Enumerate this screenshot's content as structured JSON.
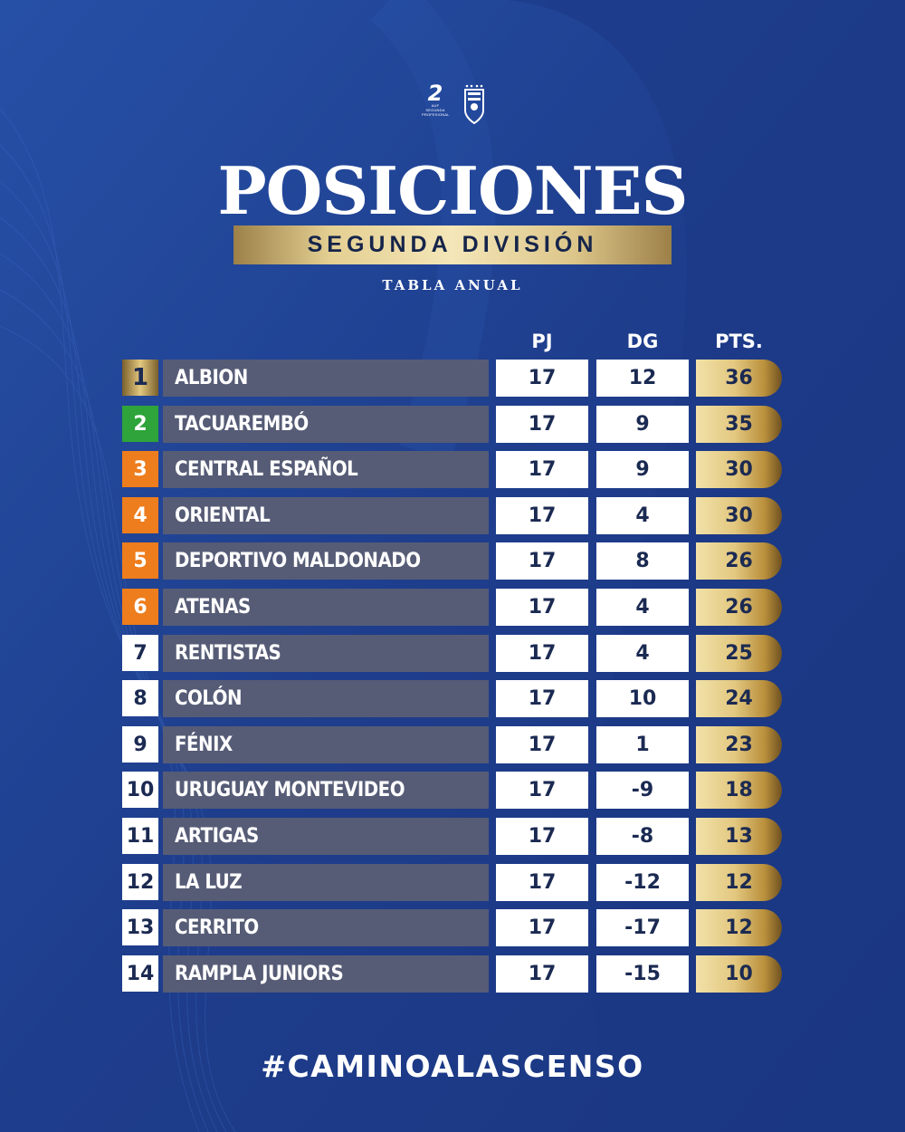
{
  "header": {
    "title": "POSICIONES",
    "subtitle": "SEGUNDA DIVISIÓN",
    "tag": "TABLA ANUAL",
    "logo_number": "2",
    "logo_text": "AUF SEGUNDA PROFESIONAL"
  },
  "columns": {
    "pj": "PJ",
    "dg": "DG",
    "pts": "PTS."
  },
  "colors": {
    "background": "#1f3f8e",
    "team_band": "#565c76",
    "leader": "#b08f4a",
    "promotion": "#2ea43a",
    "playoff": "#ee7d1d",
    "normal": "#ffffff",
    "gold": "#e3c880"
  },
  "standings": [
    {
      "pos": "1",
      "team": "ALBION",
      "pj": "17",
      "dg": "12",
      "pts": "36",
      "status": "leader"
    },
    {
      "pos": "2",
      "team": "TACUAREMBÓ",
      "pj": "17",
      "dg": "9",
      "pts": "35",
      "status": "promotion"
    },
    {
      "pos": "3",
      "team": "CENTRAL ESPAÑOL",
      "pj": "17",
      "dg": "9",
      "pts": "30",
      "status": "playoff"
    },
    {
      "pos": "4",
      "team": "ORIENTAL",
      "pj": "17",
      "dg": "4",
      "pts": "30",
      "status": "playoff"
    },
    {
      "pos": "5",
      "team": "DEPORTIVO MALDONADO",
      "pj": "17",
      "dg": "8",
      "pts": "26",
      "status": "playoff"
    },
    {
      "pos": "6",
      "team": "ATENAS",
      "pj": "17",
      "dg": "4",
      "pts": "26",
      "status": "playoff"
    },
    {
      "pos": "7",
      "team": "RENTISTAS",
      "pj": "17",
      "dg": "4",
      "pts": "25",
      "status": "normal"
    },
    {
      "pos": "8",
      "team": "COLÓN",
      "pj": "17",
      "dg": "10",
      "pts": "24",
      "status": "normal"
    },
    {
      "pos": "9",
      "team": "FÉNIX",
      "pj": "17",
      "dg": "1",
      "pts": "23",
      "status": "normal"
    },
    {
      "pos": "10",
      "team": "URUGUAY MONTEVIDEO",
      "pj": "17",
      "dg": "-9",
      "pts": "18",
      "status": "normal"
    },
    {
      "pos": "11",
      "team": "ARTIGAS",
      "pj": "17",
      "dg": "-8",
      "pts": "13",
      "status": "normal"
    },
    {
      "pos": "12",
      "team": "LA LUZ",
      "pj": "17",
      "dg": "-12",
      "pts": "12",
      "status": "normal"
    },
    {
      "pos": "13",
      "team": "CERRITO",
      "pj": "17",
      "dg": "-17",
      "pts": "12",
      "status": "normal"
    },
    {
      "pos": "14",
      "team": "RAMPLA JUNIORS",
      "pj": "17",
      "dg": "-15",
      "pts": "10",
      "status": "normal"
    }
  ],
  "footer": {
    "hashtag": "#CAMINOALASCENSO"
  }
}
